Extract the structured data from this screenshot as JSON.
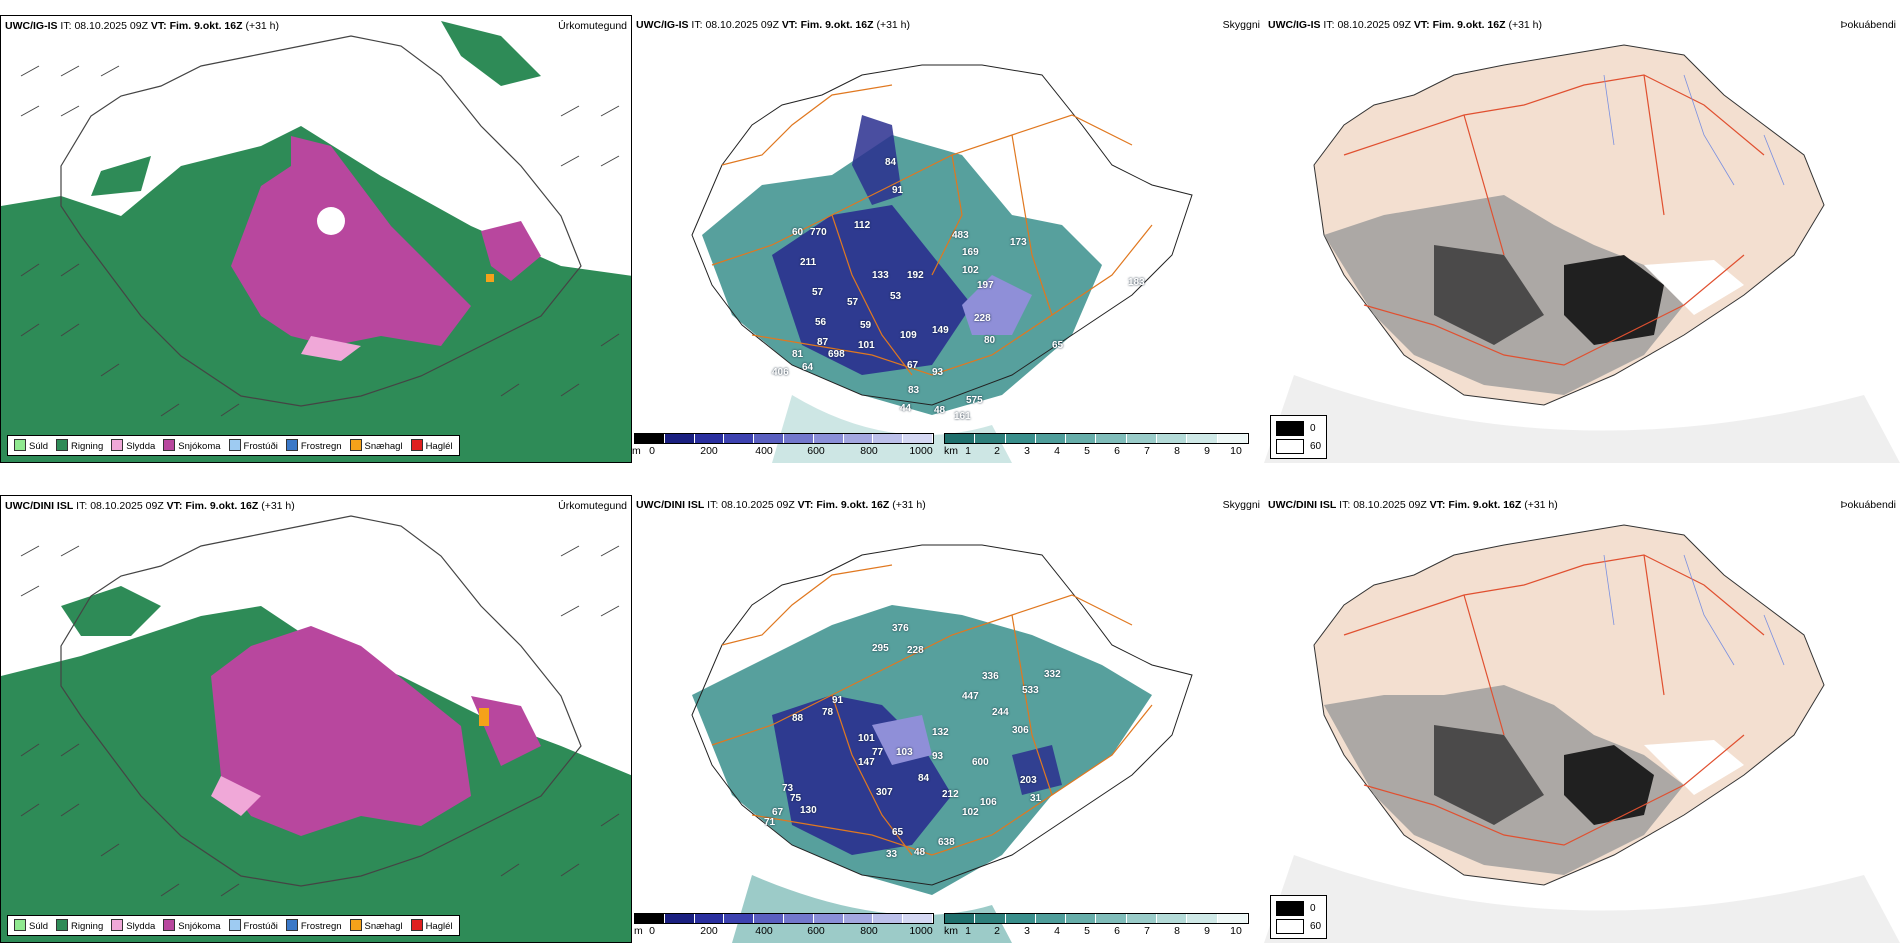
{
  "colors": {
    "rain": "#2e8b57",
    "snow": "#b8479e",
    "sleet": "#f0a8d8",
    "drizzle": "#8fe88f",
    "freezing_drizzle": "#9ecbf2",
    "freezing_rain": "#3a78c8",
    "snow_pellets": "#f5a21a",
    "hail": "#e02020",
    "ceiling_dark": "#2a2f8f",
    "vis_teal": "#3a8f8c",
    "land_beige": "#f3dfd0",
    "roads": "#e07820"
  },
  "rows": [
    {
      "model": "UWC/IG-IS",
      "it_label": "IT:",
      "it_value": "08.10.2025 09Z",
      "vt_label": "VT:",
      "vt_value": "Fim. 9.okt. 16Z",
      "lead": "(+31 h)",
      "precip_title": "Úrkomutegund",
      "ceiling_title": "Skyggni",
      "fog_title": "Þokuábendi",
      "ceiling_labels": [
        "84",
        "91",
        "112",
        "770",
        "60",
        "483",
        "169",
        "102",
        "211",
        "192",
        "197",
        "133",
        "57",
        "53",
        "57",
        "56",
        "59",
        "109",
        "149",
        "228",
        "80",
        "65",
        "81",
        "698",
        "87",
        "101",
        "67",
        "93",
        "406",
        "64",
        "83",
        "44",
        "48",
        "161",
        "575",
        "183",
        "173"
      ],
      "precip_legend": [
        "Súld",
        "Rigning",
        "Slydda",
        "Snjókoma",
        "Frostúði",
        "Frostregn",
        "Snæhagl",
        "Haglél"
      ],
      "ceiling_scale": {
        "unit": "m",
        "ticks": [
          "0",
          "200",
          "400",
          "600",
          "800",
          "1000"
        ]
      },
      "vis_scale": {
        "unit": "km",
        "ticks": [
          "1",
          "2",
          "3",
          "4",
          "5",
          "6",
          "7",
          "8",
          "9",
          "10"
        ]
      },
      "fog_legend": [
        "0",
        "60"
      ]
    },
    {
      "model": "UWC/DINI ISL",
      "it_label": "IT:",
      "it_value": "08.10.2025 09Z",
      "vt_label": "VT:",
      "vt_value": "Fim. 9.okt. 16Z",
      "lead": "(+31 h)",
      "precip_title": "Úrkomutegund",
      "ceiling_title": "Skyggni",
      "fog_title": "Þokuábendi",
      "ceiling_labels": [
        "376",
        "295",
        "228",
        "336",
        "332",
        "533",
        "447",
        "244",
        "306",
        "91",
        "88",
        "78",
        "132",
        "77",
        "103",
        "93",
        "600",
        "84",
        "203",
        "67",
        "130",
        "75",
        "307",
        "212",
        "106",
        "31",
        "71",
        "73",
        "65",
        "638",
        "33",
        "48",
        "102",
        "101",
        "147"
      ],
      "precip_legend": [
        "Súld",
        "Rigning",
        "Slydda",
        "Snjókoma",
        "Frostúði",
        "Frostregn",
        "Snæhagl",
        "Haglél"
      ],
      "ceiling_scale": {
        "unit": "m",
        "ticks": [
          "0",
          "200",
          "400",
          "600",
          "800",
          "1000"
        ]
      },
      "vis_scale": {
        "unit": "km",
        "ticks": [
          "1",
          "2",
          "3",
          "4",
          "5",
          "6",
          "7",
          "8",
          "9",
          "10"
        ]
      },
      "fog_legend": [
        "0",
        "60"
      ]
    }
  ]
}
